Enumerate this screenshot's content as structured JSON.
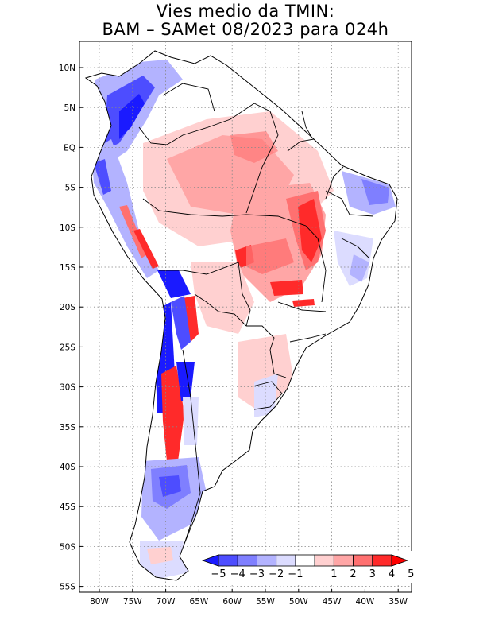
{
  "title": {
    "line1": "Vies medio da TMIN:",
    "line2": "BAM – SAMet 08/2023  para 024h"
  },
  "lat_labels": [
    "10N",
    "5N",
    "EQ",
    "5S",
    "10S",
    "15S",
    "20S",
    "25S",
    "30S",
    "35S",
    "40S",
    "45S",
    "50S",
    "55S"
  ],
  "lon_labels": [
    "80W",
    "75W",
    "70W",
    "65W",
    "60W",
    "55W",
    "50W",
    "45W",
    "40W",
    "35W"
  ],
  "colorbar": {
    "labels": [
      "−5",
      "−4",
      "−3",
      "−2",
      "−1",
      "1",
      "2",
      "3",
      "4",
      "5"
    ],
    "colors": [
      "#1a1aff",
      "#4d4dff",
      "#7f7fff",
      "#b3b3ff",
      "#dcdcff",
      "#ffffff",
      "#ffd0d0",
      "#ffa6a6",
      "#ff7070",
      "#ff2a2a",
      "#ff0000"
    ]
  },
  "map": {
    "land_color": "#ffffff",
    "border_color": "#000000",
    "grid": true
  }
}
